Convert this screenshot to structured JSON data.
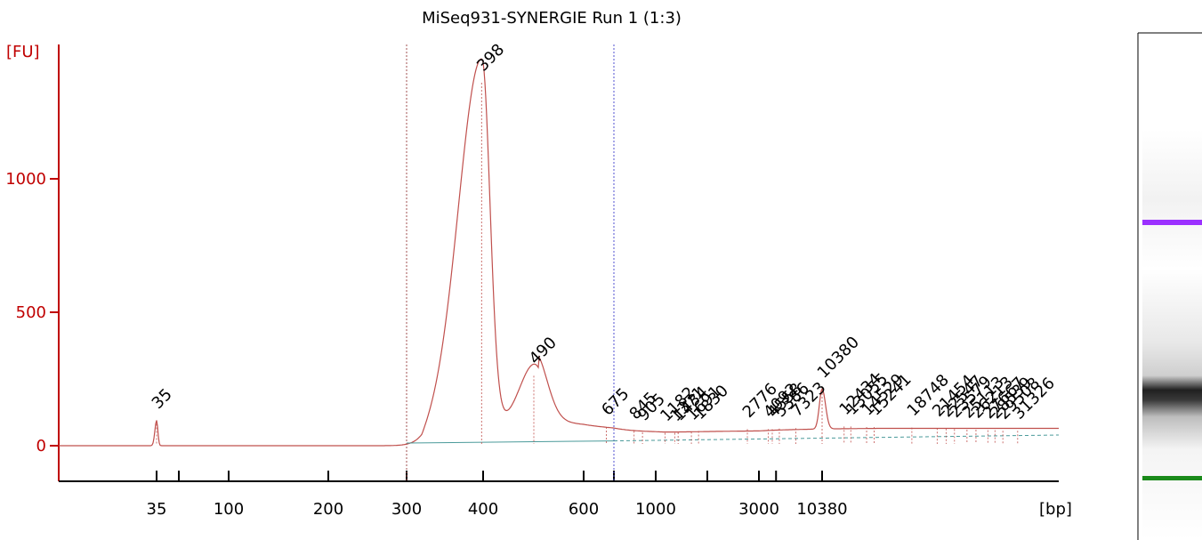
{
  "chart_data": {
    "type": "line",
    "title": "MiSeq931-SYNERGIE Run 1 (1:3)",
    "ylabel": "[FU]",
    "xlabel": "[bp]",
    "ylim": [
      -140,
      1500
    ],
    "y_ticks": [
      0,
      500,
      1000
    ],
    "x_tick_labels": [
      "35",
      "100",
      "200",
      "300",
      "400",
      "600",
      "1000",
      "3000",
      "10380"
    ],
    "region_markers_bp": [
      300,
      700
    ],
    "colors": {
      "axis": "#c00000",
      "trace": "#c0504d",
      "baseline": "#4a9a9a",
      "lower_marker": "#1a8a1a",
      "upper_marker": "#9b30ff",
      "region_line_left": "#a05050",
      "region_line_right": "#5050d0"
    },
    "peaks": [
      {
        "label": "35",
        "bp": 35,
        "fu": 95,
        "color": "#1a8a1a"
      },
      {
        "label": "398",
        "bp": 398,
        "fu": 1360,
        "color": "#000000"
      },
      {
        "label": "490",
        "bp": 490,
        "fu": 262,
        "color": "#000000"
      },
      {
        "label": "675",
        "bp": 675,
        "fu": 70,
        "color": "#000000"
      },
      {
        "label": "845",
        "bp": 845,
        "fu": 55,
        "color": "#000000"
      },
      {
        "label": "905",
        "bp": 905,
        "fu": 50,
        "color": "#000000"
      },
      {
        "label": "1182",
        "bp": 1182,
        "fu": 48,
        "color": "#000000"
      },
      {
        "label": "1371",
        "bp": 1371,
        "fu": 48,
        "color": "#000000"
      },
      {
        "label": "1434",
        "bp": 1434,
        "fu": 50,
        "color": "#000000"
      },
      {
        "label": "1691",
        "bp": 1691,
        "fu": 52,
        "color": "#000000"
      },
      {
        "label": "1830",
        "bp": 1830,
        "fu": 55,
        "color": "#000000"
      },
      {
        "label": "2776",
        "bp": 2776,
        "fu": 62,
        "color": "#000000"
      },
      {
        "label": "4092",
        "bp": 4092,
        "fu": 62,
        "color": "#000000"
      },
      {
        "label": "4558",
        "bp": 4558,
        "fu": 62,
        "color": "#000000"
      },
      {
        "label": "5386",
        "bp": 5386,
        "fu": 64,
        "color": "#000000"
      },
      {
        "label": "7323",
        "bp": 7323,
        "fu": 66,
        "color": "#000000"
      },
      {
        "label": "10380",
        "bp": 10380,
        "fu": 210,
        "color": "#9b30ff"
      },
      {
        "label": "12434",
        "bp": 12434,
        "fu": 72,
        "color": "#000000"
      },
      {
        "label": "13055",
        "bp": 13055,
        "fu": 72,
        "color": "#000000"
      },
      {
        "label": "14529",
        "bp": 14529,
        "fu": 70,
        "color": "#000000"
      },
      {
        "label": "15241",
        "bp": 15241,
        "fu": 70,
        "color": "#000000"
      },
      {
        "label": "18748",
        "bp": 18748,
        "fu": 68,
        "color": "#000000"
      },
      {
        "label": "21454",
        "bp": 21454,
        "fu": 66,
        "color": "#000000"
      },
      {
        "label": "22547",
        "bp": 22547,
        "fu": 64,
        "color": "#000000"
      },
      {
        "label": "23579",
        "bp": 23579,
        "fu": 62,
        "color": "#000000"
      },
      {
        "label": "25113",
        "bp": 25113,
        "fu": 60,
        "color": "#000000"
      },
      {
        "label": "26213",
        "bp": 26213,
        "fu": 60,
        "color": "#000000"
      },
      {
        "label": "27667",
        "bp": 27667,
        "fu": 58,
        "color": "#000000"
      },
      {
        "label": "28539",
        "bp": 28539,
        "fu": 58,
        "color": "#000000"
      },
      {
        "label": "29508",
        "bp": 29508,
        "fu": 56,
        "color": "#000000"
      },
      {
        "label": "31326",
        "bp": 31326,
        "fu": 56,
        "color": "#000000"
      }
    ]
  }
}
